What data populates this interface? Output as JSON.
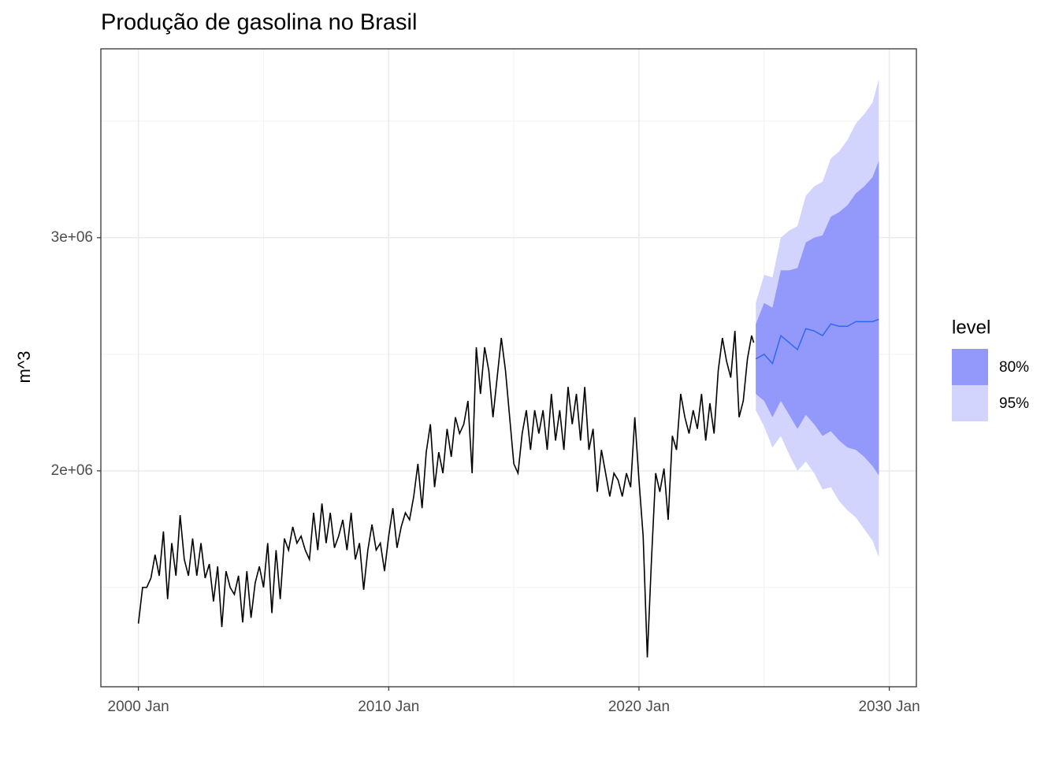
{
  "chart_data": {
    "type": "forecast",
    "title": "Produção de gasolina no Brasil",
    "y_label": "m^3",
    "xlim": [
      "1998-07",
      "2031-02"
    ],
    "xticks": [
      {
        "value": "2000-01",
        "label": "2000 Jan"
      },
      {
        "value": "2010-01",
        "label": "2010 Jan"
      },
      {
        "value": "2020-01",
        "label": "2020 Jan"
      },
      {
        "value": "2030-01",
        "label": "2030 Jan"
      }
    ],
    "x_minor_ticks": [
      "2005-01",
      "2015-01",
      "2025-01"
    ],
    "ylim": [
      1074000,
      3810000
    ],
    "yticks": [
      {
        "value": 2000000,
        "label": "2e+06"
      },
      {
        "value": 3000000,
        "label": "3e+06"
      }
    ],
    "y_minor_ticks": [
      1500000,
      2500000,
      3500000
    ],
    "grid": true,
    "history": {
      "color": "#000000",
      "x": [
        "2000-01",
        "2000-03",
        "2000-05",
        "2000-07",
        "2000-09",
        "2000-11",
        "2001-01",
        "2001-03",
        "2001-05",
        "2001-07",
        "2001-09",
        "2001-11",
        "2002-01",
        "2002-03",
        "2002-05",
        "2002-07",
        "2002-09",
        "2002-11",
        "2003-01",
        "2003-03",
        "2003-05",
        "2003-07",
        "2003-09",
        "2003-11",
        "2004-01",
        "2004-03",
        "2004-05",
        "2004-07",
        "2004-09",
        "2004-11",
        "2005-01",
        "2005-03",
        "2005-05",
        "2005-07",
        "2005-09",
        "2005-11",
        "2006-01",
        "2006-03",
        "2006-05",
        "2006-07",
        "2006-09",
        "2006-11",
        "2007-01",
        "2007-03",
        "2007-05",
        "2007-07",
        "2007-09",
        "2007-11",
        "2008-01",
        "2008-03",
        "2008-05",
        "2008-07",
        "2008-09",
        "2008-11",
        "2009-01",
        "2009-03",
        "2009-05",
        "2009-07",
        "2009-09",
        "2009-11",
        "2010-01",
        "2010-03",
        "2010-05",
        "2010-07",
        "2010-09",
        "2010-11",
        "2011-01",
        "2011-03",
        "2011-05",
        "2011-07",
        "2011-09",
        "2011-11",
        "2012-01",
        "2012-03",
        "2012-05",
        "2012-07",
        "2012-09",
        "2012-11",
        "2013-01",
        "2013-03",
        "2013-05",
        "2013-07",
        "2013-09",
        "2013-11",
        "2014-01",
        "2014-03",
        "2014-05",
        "2014-07",
        "2014-09",
        "2014-11",
        "2015-01",
        "2015-03",
        "2015-05",
        "2015-07",
        "2015-09",
        "2015-11",
        "2016-01",
        "2016-03",
        "2016-05",
        "2016-07",
        "2016-09",
        "2016-11",
        "2017-01",
        "2017-03",
        "2017-05",
        "2017-07",
        "2017-09",
        "2017-11",
        "2018-01",
        "2018-03",
        "2018-05",
        "2018-07",
        "2018-09",
        "2018-11",
        "2019-01",
        "2019-03",
        "2019-05",
        "2019-07",
        "2019-09",
        "2019-11",
        "2020-01",
        "2020-03",
        "2020-05",
        "2020-07",
        "2020-09",
        "2020-11",
        "2021-01",
        "2021-03",
        "2021-05",
        "2021-07",
        "2021-09",
        "2021-11",
        "2022-01",
        "2022-03",
        "2022-05",
        "2022-07",
        "2022-09",
        "2022-11",
        "2023-01",
        "2023-03",
        "2023-05",
        "2023-07",
        "2023-09",
        "2023-11",
        "2024-01",
        "2024-03",
        "2024-05",
        "2024-07",
        "2024-08"
      ],
      "values": [
        1345000,
        1500000,
        1500000,
        1540000,
        1640000,
        1550000,
        1740000,
        1450000,
        1690000,
        1550000,
        1810000,
        1620000,
        1550000,
        1710000,
        1550000,
        1690000,
        1540000,
        1600000,
        1440000,
        1590000,
        1330000,
        1570000,
        1500000,
        1470000,
        1550000,
        1350000,
        1570000,
        1370000,
        1520000,
        1590000,
        1500000,
        1690000,
        1390000,
        1660000,
        1450000,
        1710000,
        1660000,
        1760000,
        1690000,
        1720000,
        1660000,
        1620000,
        1820000,
        1660000,
        1860000,
        1690000,
        1820000,
        1670000,
        1720000,
        1790000,
        1660000,
        1820000,
        1620000,
        1690000,
        1490000,
        1660000,
        1770000,
        1660000,
        1690000,
        1570000,
        1720000,
        1840000,
        1670000,
        1760000,
        1820000,
        1790000,
        1890000,
        2030000,
        1840000,
        2080000,
        2200000,
        1930000,
        2080000,
        1990000,
        2180000,
        2060000,
        2230000,
        2160000,
        2200000,
        2300000,
        1990000,
        2530000,
        2330000,
        2530000,
        2430000,
        2230000,
        2400000,
        2570000,
        2430000,
        2230000,
        2030000,
        1990000,
        2160000,
        2260000,
        2090000,
        2260000,
        2160000,
        2260000,
        2090000,
        2330000,
        2130000,
        2260000,
        2090000,
        2360000,
        2200000,
        2330000,
        2130000,
        2360000,
        2090000,
        2180000,
        1910000,
        2090000,
        1990000,
        1890000,
        1990000,
        1960000,
        1890000,
        1990000,
        1930000,
        2230000,
        1960000,
        1720000,
        1200000,
        1620000,
        1990000,
        1910000,
        2010000,
        1790000,
        2150000,
        2090000,
        2330000,
        2230000,
        2160000,
        2260000,
        2180000,
        2330000,
        2130000,
        2290000,
        2160000,
        2430000,
        2570000,
        2470000,
        2400000,
        2600000,
        2230000,
        2300000,
        2480000,
        2580000,
        2550000
      ]
    },
    "forecast": {
      "line_color": "#3366ee",
      "x": [
        "2024-09",
        "2025-01",
        "2025-05",
        "2025-09",
        "2026-01",
        "2026-05",
        "2026-09",
        "2027-01",
        "2027-05",
        "2027-09",
        "2028-01",
        "2028-05",
        "2028-09",
        "2029-01",
        "2029-05",
        "2029-08"
      ],
      "mean": [
        2480000,
        2500000,
        2460000,
        2580000,
        2550000,
        2520000,
        2610000,
        2600000,
        2580000,
        2630000,
        2620000,
        2620000,
        2640000,
        2640000,
        2640000,
        2650000
      ],
      "lower_80": [
        2330000,
        2300000,
        2230000,
        2300000,
        2240000,
        2180000,
        2240000,
        2200000,
        2150000,
        2170000,
        2130000,
        2100000,
        2090000,
        2060000,
        2020000,
        1980000
      ],
      "upper_80": [
        2630000,
        2720000,
        2700000,
        2860000,
        2860000,
        2870000,
        2980000,
        3000000,
        3010000,
        3090000,
        3110000,
        3140000,
        3190000,
        3220000,
        3260000,
        3330000
      ],
      "lower_95": [
        2260000,
        2190000,
        2100000,
        2150000,
        2070000,
        2000000,
        2040000,
        1990000,
        1920000,
        1930000,
        1870000,
        1830000,
        1800000,
        1750000,
        1700000,
        1630000
      ],
      "upper_95": [
        2720000,
        2840000,
        2830000,
        3000000,
        3030000,
        3050000,
        3180000,
        3220000,
        3240000,
        3340000,
        3370000,
        3420000,
        3490000,
        3530000,
        3580000,
        3680000
      ]
    },
    "legend": {
      "title": "level",
      "entries": [
        {
          "label": "80%",
          "color": "#9399fb"
        },
        {
          "label": "95%",
          "color": "#d3d4fd"
        }
      ]
    }
  }
}
